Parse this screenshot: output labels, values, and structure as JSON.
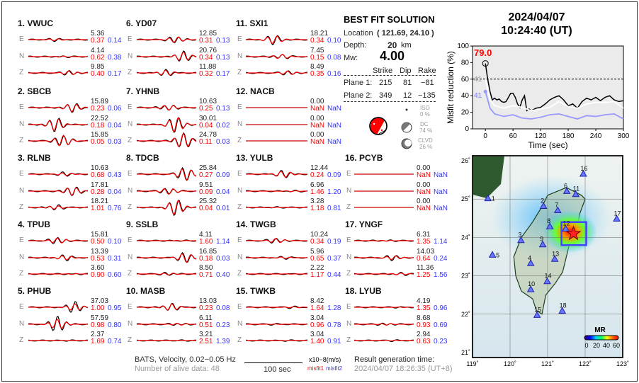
{
  "stations": [
    {
      "name": "1.  VWUC",
      "traces": [
        {
          "c": "E",
          "amp": "5.36",
          "m1": "0.37",
          "m2": "0.14"
        },
        {
          "c": "N",
          "amp": "4.14",
          "m1": "0.62",
          "m2": "0.38"
        },
        {
          "c": "Z",
          "amp": "9.85",
          "m1": "0.40",
          "m2": "0.17"
        }
      ]
    },
    {
      "name": "2.  SBCB",
      "traces": [
        {
          "c": "E",
          "amp": "15.89",
          "m1": "0.23",
          "m2": "0.06"
        },
        {
          "c": "N",
          "amp": "22.52",
          "m1": "0.18",
          "m2": "0.04"
        },
        {
          "c": "Z",
          "amp": "15.85",
          "m1": "0.05",
          "m2": "0.03"
        }
      ]
    },
    {
      "name": "3.  RLNB",
      "traces": [
        {
          "c": "E",
          "amp": "10.63",
          "m1": "0.68",
          "m2": "0.43"
        },
        {
          "c": "N",
          "amp": "17.81",
          "m1": "0.28",
          "m2": "0.04"
        },
        {
          "c": "Z",
          "amp": "18.21",
          "m1": "1.01",
          "m2": "0.76"
        }
      ]
    },
    {
      "name": "4.  TPUB",
      "traces": [
        {
          "c": "E",
          "amp": "15.81",
          "m1": "0.50",
          "m2": "0.10"
        },
        {
          "c": "N",
          "amp": "13.39",
          "m1": "0.53",
          "m2": "0.31"
        },
        {
          "c": "Z",
          "amp": "3.60",
          "m1": "0.90",
          "m2": "0.60"
        }
      ]
    },
    {
      "name": "5.  PHUB",
      "traces": [
        {
          "c": "E",
          "amp": "37.03",
          "m1": "1.00",
          "m2": "0.95"
        },
        {
          "c": "N",
          "amp": "57.59",
          "m1": "0.98",
          "m2": "0.80"
        },
        {
          "c": "Z",
          "amp": "2.37",
          "m1": "1.69",
          "m2": "0.74"
        }
      ]
    },
    {
      "name": "6.  YD07",
      "traces": [
        {
          "c": "E",
          "amp": "12.85",
          "m1": "0.31",
          "m2": "0.13"
        },
        {
          "c": "N",
          "amp": "20.76",
          "m1": "0.34",
          "m2": "0.13"
        },
        {
          "c": "Z",
          "amp": "11.88",
          "m1": "0.32",
          "m2": "0.17"
        }
      ]
    },
    {
      "name": "7.  YHNB",
      "traces": [
        {
          "c": "E",
          "amp": "10.63",
          "m1": "0.25",
          "m2": "0.13"
        },
        {
          "c": "N",
          "amp": "30.01",
          "m1": "0.04",
          "m2": "0.02"
        },
        {
          "c": "Z",
          "amp": "24.78",
          "m1": "0.11",
          "m2": "0.03"
        }
      ]
    },
    {
      "name": "8.  TDCB",
      "traces": [
        {
          "c": "E",
          "amp": "25.84",
          "m1": "0.27",
          "m2": "0.09"
        },
        {
          "c": "N",
          "amp": "9.51",
          "m1": "0.09",
          "m2": "0.04"
        },
        {
          "c": "Z",
          "amp": "25.32",
          "m1": "0.04",
          "m2": "0.01"
        }
      ]
    },
    {
      "name": "9.  SSLB",
      "traces": [
        {
          "c": "E",
          "amp": "4.11",
          "m1": "1.60",
          "m2": "1.14"
        },
        {
          "c": "N",
          "amp": "16.85",
          "m1": "0.18",
          "m2": "0.03"
        },
        {
          "c": "Z",
          "amp": "8.50",
          "m1": "0.71",
          "m2": "0.40"
        }
      ]
    },
    {
      "name": "10. MASB",
      "traces": [
        {
          "c": "E",
          "amp": "13.03",
          "m1": "0.23",
          "m2": "0.08"
        },
        {
          "c": "N",
          "amp": "6.11",
          "m1": "0.51",
          "m2": "0.23"
        },
        {
          "c": "Z",
          "amp": "3.21",
          "m1": "2.51",
          "m2": "1.39"
        }
      ]
    },
    {
      "name": "11. SXI1",
      "traces": [
        {
          "c": "E",
          "amp": "18.21",
          "m1": "0.34",
          "m2": "0.10"
        },
        {
          "c": "N",
          "amp": "7.45",
          "m1": "0.15",
          "m2": "0.08"
        },
        {
          "c": "Z",
          "amp": "8.49",
          "m1": "0.35",
          "m2": "0.16"
        }
      ]
    },
    {
      "name": "12. NACB",
      "traces": [
        {
          "c": "E",
          "amp": "0.00",
          "m1": "NaN",
          "m2": "NaN"
        },
        {
          "c": "N",
          "amp": "0.00",
          "m1": "NaN",
          "m2": "NaN"
        },
        {
          "c": "Z",
          "amp": "0.00",
          "m1": "NaN",
          "m2": "NaN"
        }
      ]
    },
    {
      "name": "13. YULB",
      "traces": [
        {
          "c": "E",
          "amp": "12.44",
          "m1": "0.24",
          "m2": "0.09"
        },
        {
          "c": "N",
          "amp": "6.96",
          "m1": "1.46",
          "m2": "1.20"
        },
        {
          "c": "Z",
          "amp": "3.28",
          "m1": "1.18",
          "m2": "0.81"
        }
      ]
    },
    {
      "name": "14. TWGB",
      "traces": [
        {
          "c": "E",
          "amp": "10.24",
          "m1": "0.34",
          "m2": "0.19"
        },
        {
          "c": "N",
          "amp": "5.96",
          "m1": "0.65",
          "m2": "0.37"
        },
        {
          "c": "Z",
          "amp": "2.22",
          "m1": "1.17",
          "m2": "0.44"
        }
      ]
    },
    {
      "name": "15. TWKB",
      "traces": [
        {
          "c": "E",
          "amp": "8.42",
          "m1": "1.64",
          "m2": "1.28"
        },
        {
          "c": "N",
          "amp": "3.04",
          "m1": "0.96",
          "m2": "0.78"
        },
        {
          "c": "Z",
          "amp": "3.04",
          "m1": "1.40",
          "m2": "0.91"
        }
      ]
    },
    {
      "name": "16. PCYB",
      "traces": [
        {
          "c": "E",
          "amp": "0.00",
          "m1": "NaN",
          "m2": "NaN"
        },
        {
          "c": "N",
          "amp": "0.00",
          "m1": "NaN",
          "m2": "NaN"
        },
        {
          "c": "Z",
          "amp": "0.00",
          "m1": "NaN",
          "m2": "NaN"
        }
      ]
    },
    {
      "name": "17. YNGF",
      "traces": [
        {
          "c": "E",
          "amp": "6.31",
          "m1": "1.35",
          "m2": "1.14"
        },
        {
          "c": "N",
          "amp": "14.03",
          "m1": "0.64",
          "m2": "0.24"
        },
        {
          "c": "Z",
          "amp": "11.36",
          "m1": "1.25",
          "m2": "1.56"
        }
      ]
    },
    {
      "name": "18. LYUB",
      "traces": [
        {
          "c": "E",
          "amp": "4.19",
          "m1": "1.35",
          "m2": "0.96"
        },
        {
          "c": "N",
          "amp": "8.68",
          "m1": "0.93",
          "m2": "0.69"
        },
        {
          "c": "Z",
          "amp": "2.94",
          "m1": "0.63",
          "m2": "0.23"
        }
      ]
    }
  ],
  "footer": {
    "network": "BATS, Velocity, 0.02−0.05 Hz",
    "alive": "Number of alive data: 48",
    "scale_unit": "x10−8(m/s)",
    "scale_label": "100 sec",
    "misfit1": "misfit1",
    "misfit2": "misfit2",
    "gen_label": "Result generation time:",
    "gen_time": "2024/04/07 18:26:35 (UT+8)"
  },
  "solution": {
    "title": "BEST FIT SOLUTION",
    "location_label": "Location",
    "location": "( 121.69,  24.10 )",
    "depth_label": "Depth:",
    "depth": "20",
    "depth_unit": "km",
    "mw_label": "Mw:",
    "mw": "4.00",
    "headers": [
      "Strike",
      "Dip",
      "Rake"
    ],
    "planes": [
      {
        "label": "Plane 1:",
        "strike": "215",
        "dip": "81",
        "rake": "−81"
      },
      {
        "label": "Plane 2:",
        "strike": "349",
        "dip": "12",
        "rake": "−135"
      }
    ],
    "iso_label": "ISO",
    "iso": "0 %",
    "dc_label": "DC",
    "dc": "74 %",
    "clvd_label": "CLVD",
    "clvd": "26 %"
  },
  "header": {
    "date": "2024/04/07",
    "time": "10:24:40  (UT)"
  },
  "chart_data": {
    "type": "line",
    "xlabel": "Time (sec)",
    "ylabel": "Misfit reduction (%)",
    "xlim": [
      -28,
      300
    ],
    "ylim": [
      0,
      100
    ],
    "xticks": [
      0,
      60,
      120,
      180,
      240,
      300
    ],
    "yticks": [
      0,
      20,
      40,
      60,
      80,
      100
    ],
    "reference_line": 60,
    "best_label": "79.0",
    "grey_label": "41",
    "blue_label": "41",
    "colors": {
      "black": "#000000",
      "white": "#ffffff",
      "blue": "#9999ff",
      "best": "#ff0000",
      "background": "#ebebeb"
    },
    "series": [
      {
        "color": "black",
        "x": [
          0,
          5,
          10,
          15,
          20,
          25,
          30,
          35,
          40,
          45,
          50,
          55,
          60,
          65,
          70,
          75,
          80,
          85,
          90,
          95,
          100,
          110,
          120,
          130,
          140,
          150,
          160,
          170,
          180,
          190,
          200,
          210,
          220,
          230,
          240,
          250,
          260,
          270,
          280,
          290,
          300
        ],
        "y": [
          79,
          60,
          45,
          35,
          37,
          35,
          36,
          33,
          32,
          33,
          38,
          43,
          43,
          38,
          30,
          26,
          35,
          40,
          22,
          24,
          22,
          25,
          26,
          30,
          35,
          38,
          40,
          35,
          28,
          30,
          25,
          33,
          37,
          35,
          38,
          34,
          38,
          40,
          35,
          33,
          34
        ]
      },
      {
        "color": "white",
        "x": [
          0,
          10,
          20,
          40,
          60,
          80,
          100,
          120,
          140,
          160,
          180,
          200,
          220,
          240,
          260,
          280,
          300
        ],
        "y": [
          60,
          35,
          28,
          25,
          28,
          26,
          22,
          24,
          26,
          33,
          27,
          25,
          30,
          32,
          32,
          33,
          25
        ]
      },
      {
        "color": "blue",
        "x": [
          0,
          10,
          20,
          40,
          60,
          80,
          100,
          120,
          140,
          160,
          180,
          200,
          220,
          240,
          260,
          280,
          300
        ],
        "y": [
          45,
          25,
          18,
          15,
          17,
          13,
          12,
          14,
          17,
          18,
          15,
          12,
          16,
          15,
          17,
          18,
          12
        ]
      }
    ]
  },
  "map": {
    "lon_ticks": [
      "119˚",
      "120˚",
      "121˚",
      "122˚",
      "123˚"
    ],
    "lat_ticks": [
      "21˚",
      "22˚",
      "23˚",
      "24˚",
      "25˚",
      "26˚"
    ],
    "epicenter": {
      "lon": 121.69,
      "lat": 24.1
    },
    "colorbar_label": "MR",
    "colorbar_ticks": [
      "0",
      "20",
      "40",
      "60"
    ],
    "stations": [
      {
        "id": "1",
        "lon": 119.41,
        "lat": 25.01
      },
      {
        "id": "2",
        "lon": 120.89,
        "lat": 24.81
      },
      {
        "id": "3",
        "lon": 120.29,
        "lat": 23.92
      },
      {
        "id": "4",
        "lon": 120.55,
        "lat": 23.32
      },
      {
        "id": "5",
        "lon": 119.53,
        "lat": 23.54
      },
      {
        "id": "6",
        "lon": 121.51,
        "lat": 25.2
      },
      {
        "id": "7",
        "lon": 121.27,
        "lat": 24.7
      },
      {
        "id": "8",
        "lon": 121.06,
        "lat": 24.28
      },
      {
        "id": "9",
        "lon": 120.87,
        "lat": 23.81
      },
      {
        "id": "10",
        "lon": 120.55,
        "lat": 22.64
      },
      {
        "id": "11",
        "lon": 121.75,
        "lat": 25.12
      },
      {
        "id": "12",
        "lon": 121.48,
        "lat": 24.22
      },
      {
        "id": "13",
        "lon": 121.19,
        "lat": 23.43
      },
      {
        "id": "14",
        "lon": 120.99,
        "lat": 22.85
      },
      {
        "id": "15",
        "lon": 120.72,
        "lat": 21.97
      },
      {
        "id": "16",
        "lon": 121.95,
        "lat": 25.65
      },
      {
        "id": "17",
        "lon": 122.84,
        "lat": 24.48
      },
      {
        "id": "18",
        "lon": 121.39,
        "lat": 22.08
      }
    ]
  }
}
